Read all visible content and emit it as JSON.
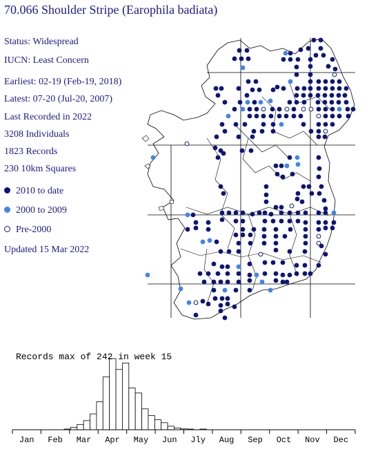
{
  "title": "70.066 Shoulder Stripe (Earophila badiata)",
  "info": [
    "Status: Widespread",
    "IUCN: Least Concern",
    "Earliest: 02-19 (Feb-19, 2018)",
    "Latest: 07-20 (Jul-20, 2007)",
    "Last Recorded in 2022",
    "3208 Individuals",
    "1823 Records",
    "230 10km Squares"
  ],
  "legend": [
    {
      "label": "2010 to date",
      "color": "#0d1577"
    },
    {
      "label": "2000 to 2009",
      "color": "#3f86ea"
    },
    {
      "label": "Pre-2000",
      "color": "#ffffff"
    }
  ],
  "updated": "Updated 15 Mar 2022",
  "map_colors": {
    "recent": "#0d1577",
    "mid": "#3f86ea",
    "old": "#ffffff"
  },
  "chart_data": {
    "type": "bar",
    "title": "Records max of 242 in week 15",
    "categories": [
      "Jan",
      "Feb",
      "Mar",
      "Apr",
      "May",
      "Jun",
      "Jly",
      "Aug",
      "Sep",
      "Oct",
      "Nov",
      "Dec"
    ],
    "weekly_values": [
      0,
      0,
      0,
      0,
      0,
      0,
      0,
      0,
      2,
      8,
      18,
      31,
      54,
      95,
      180,
      242,
      205,
      227,
      142,
      125,
      71,
      48,
      34,
      24,
      12,
      6,
      3,
      1,
      0,
      1,
      0,
      0,
      0,
      0,
      0,
      0,
      0,
      0,
      0,
      0,
      0,
      0,
      0,
      0,
      0,
      0,
      0,
      0,
      0,
      0,
      0,
      0,
      0
    ],
    "ylim": [
      0,
      242
    ]
  }
}
